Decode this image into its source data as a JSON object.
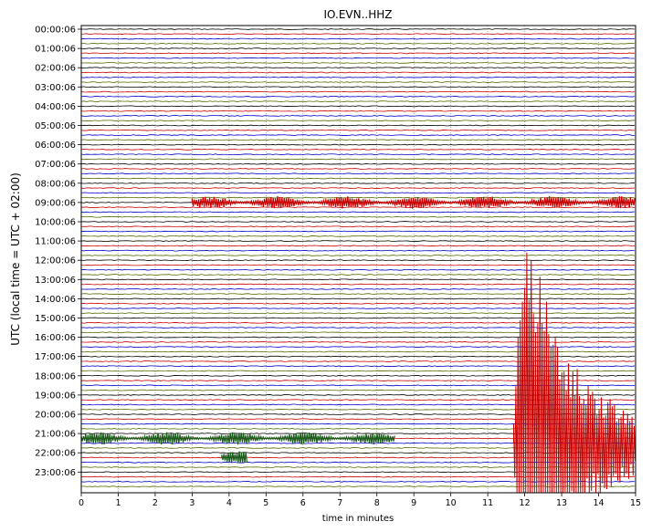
{
  "chart_data": {
    "type": "line",
    "title": "IO.EVN..HHZ",
    "xlabel": "time in minutes",
    "ylabel": "UTC (local time = UTC + 02:00)",
    "xlim": [
      0,
      15
    ],
    "x_ticks": [
      "0",
      "1",
      "2",
      "3",
      "4",
      "5",
      "6",
      "7",
      "8",
      "9",
      "10",
      "11",
      "12",
      "13",
      "14",
      "15"
    ],
    "y_tick_labels": [
      "00:00:06",
      "01:00:06",
      "02:00:06",
      "03:00:06",
      "04:00:06",
      "05:00:06",
      "06:00:06",
      "07:00:06",
      "08:00:06",
      "09:00:06",
      "10:00:06",
      "11:00:06",
      "12:00:06",
      "13:00:06",
      "14:00:06",
      "15:00:06",
      "16:00:06",
      "17:00:06",
      "18:00:06",
      "19:00:06",
      "20:00:06",
      "21:00:06",
      "22:00:06",
      "23:00:06"
    ],
    "traces_per_hour": 4,
    "trace_colors": [
      "#000000",
      "#cc0000",
      "#0000cc",
      "#556b00"
    ],
    "grid": {
      "x_dotted": true
    },
    "events": [
      {
        "description": "large seismic signal",
        "trace_hour": 21,
        "trace_index": 2,
        "start_min": 11.7,
        "peak_min": 12.0,
        "end_min": 15.0,
        "color": "#cc0000"
      },
      {
        "description": "noise burst",
        "trace_hour": 21,
        "trace_index": 1,
        "start_min": 0.0,
        "end_min": 8.5,
        "color": "#1a5c1a"
      },
      {
        "description": "small burst",
        "trace_hour": 22,
        "trace_index": 1,
        "start_min": 3.8,
        "end_min": 4.5,
        "color": "#1a5c1a"
      },
      {
        "description": "small burst",
        "trace_hour": 9,
        "trace_index": 0,
        "start_min": 3.0,
        "end_min": 15.0,
        "color": "#cc0000"
      }
    ]
  }
}
